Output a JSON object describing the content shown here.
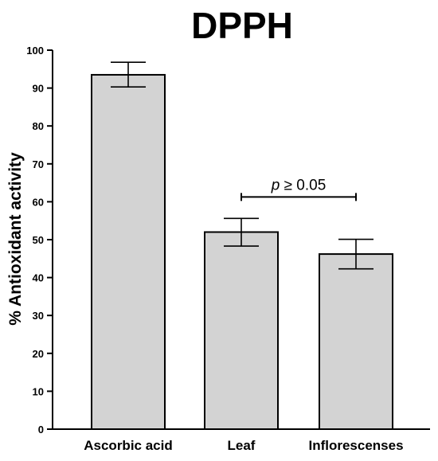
{
  "chart_data": {
    "type": "bar",
    "title": "DPPH",
    "xlabel": "",
    "ylabel": "% Antioxidant activity",
    "ylim": [
      0,
      100
    ],
    "yticks": [
      0,
      10,
      20,
      30,
      40,
      50,
      60,
      70,
      80,
      90,
      100
    ],
    "categories": [
      "Ascorbic acid",
      "Leaf",
      "Inflorescenses"
    ],
    "values": [
      93.5,
      52.0,
      46.2
    ],
    "error_low": [
      90.3,
      48.3,
      42.3
    ],
    "error_high": [
      96.8,
      55.6,
      50.1
    ],
    "bar_color": "#d3d3d3",
    "edge_color": "#000000",
    "grid": false,
    "annotations": [
      {
        "text_italic": "p",
        "text_rest": " ≥ 0.05",
        "from_category": "Leaf",
        "to_category": "Inflorescenses",
        "y": 60
      }
    ]
  }
}
